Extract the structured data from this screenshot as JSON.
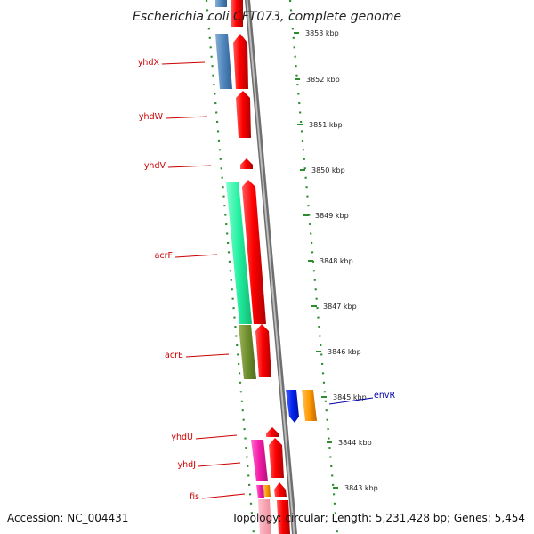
{
  "title": "Escherichia coli CFT073, complete genome",
  "footer": {
    "accession": "Accession: NC_004431",
    "summary": "Topology: circular; Length: 5,231,428 bp; Genes: 5,454"
  },
  "scale": {
    "unit": "kbp",
    "ticks": [
      "3853 kbp",
      "3852 kbp",
      "3851 kbp",
      "3850 kbp",
      "3849 kbp",
      "3848 kbp",
      "3847 kbp",
      "3846 kbp",
      "3845 kbp",
      "3844 kbp",
      "3843 kbp"
    ]
  },
  "gene_labels": [
    {
      "name": "yhdX",
      "color": "#cc0000"
    },
    {
      "name": "yhdW",
      "color": "#cc0000"
    },
    {
      "name": "yhdV",
      "color": "#cc0000"
    },
    {
      "name": "acrF",
      "color": "#cc0000"
    },
    {
      "name": "acrE",
      "color": "#cc0000"
    },
    {
      "name": "yhdU",
      "color": "#cc0000"
    },
    {
      "name": "yhdJ",
      "color": "#cc0000"
    },
    {
      "name": "fis",
      "color": "#cc0000"
    },
    {
      "name": "envR",
      "color": "#0000aa"
    }
  ],
  "colors": {
    "backbone": "#8a8a8a",
    "dots": "#2e8b2e",
    "forward_gene": "#ff0000",
    "envR_gene": "#ff9900",
    "reverse_small": "#0022ee"
  }
}
